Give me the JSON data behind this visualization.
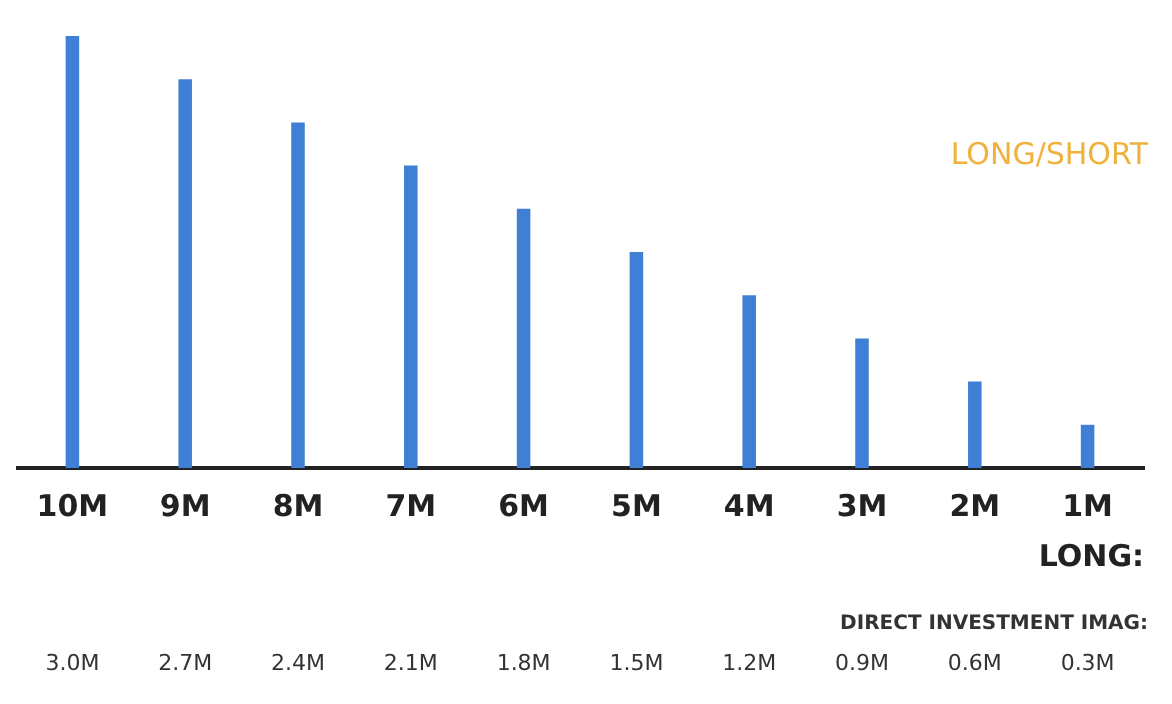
{
  "chart_data": {
    "type": "bar",
    "categories": [
      "10M",
      "9M",
      "8M",
      "7M",
      "6M",
      "5M",
      "4M",
      "3M",
      "2M",
      "1M"
    ],
    "values": [
      3.0,
      2.7,
      2.4,
      2.1,
      1.8,
      1.5,
      1.2,
      0.9,
      0.6,
      0.3
    ],
    "value_labels": [
      "3.0M",
      "2.7M",
      "2.4M",
      "2.1M",
      "1.8M",
      "1.5M",
      "1.2M",
      "0.9M",
      "0.6M",
      "0.3M"
    ],
    "color": "#3f7fd6",
    "xlabel": "LONG:",
    "annotations": [
      "LONG/SHORT",
      "DIRECT INVESTMENT IMAG:"
    ],
    "grid": false,
    "legend": false
  }
}
